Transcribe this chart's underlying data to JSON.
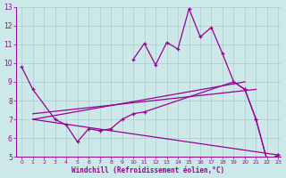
{
  "xlabel": "Windchill (Refroidissement éolien,°C)",
  "background_color": "#cce8e8",
  "line_color": "#990099",
  "grid_color": "#aacccc",
  "ylim": [
    5,
    13
  ],
  "xlim": [
    -0.5,
    23
  ],
  "line1_x": [
    0,
    1,
    3,
    4,
    5,
    6,
    7,
    8,
    9,
    10,
    11,
    19,
    20,
    21,
    22,
    23
  ],
  "line1_y": [
    9.8,
    8.6,
    7.0,
    6.7,
    5.8,
    6.5,
    6.4,
    6.5,
    7.0,
    7.3,
    7.4,
    9.0,
    8.6,
    7.0,
    4.8,
    5.1
  ],
  "line2_x": [
    10,
    11,
    12,
    13,
    14,
    15,
    16,
    17,
    18,
    19,
    20,
    21,
    22,
    23
  ],
  "line2_y": [
    10.2,
    11.05,
    9.9,
    11.1,
    10.75,
    12.9,
    11.4,
    11.9,
    10.5,
    9.0,
    8.6,
    7.0,
    4.8,
    5.1
  ],
  "trend1_x": [
    1,
    20
  ],
  "trend1_y": [
    7.0,
    9.0
  ],
  "trend2_x": [
    1,
    21
  ],
  "trend2_y": [
    7.3,
    8.6
  ],
  "trend3_x": [
    1,
    23
  ],
  "trend3_y": [
    7.0,
    5.1
  ]
}
